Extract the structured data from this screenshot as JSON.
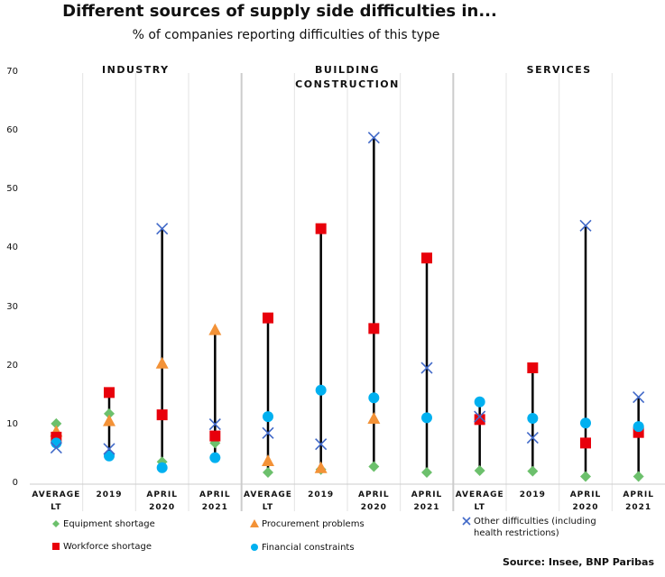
{
  "chart_data": {
    "type": "dot",
    "title": "Different sources of supply side difficulties in...",
    "subtitle": "% of companies reporting difficulties of this type",
    "source": "Source: Insee, BNP Paribas",
    "ylim": [
      0,
      70
    ],
    "yticks": [
      0,
      10,
      20,
      30,
      40,
      50,
      60,
      70
    ],
    "series": [
      {
        "name": "Equipment shortage",
        "color": "#6cc06c",
        "marker": "diamond"
      },
      {
        "name": "Procurement problems",
        "color": "#f39237",
        "marker": "triangle"
      },
      {
        "name": "Workforce shortage",
        "color": "#e8000b",
        "marker": "square"
      },
      {
        "name": "Financial constraints",
        "color": "#00b0f0",
        "marker": "circle"
      },
      {
        "name": "Other difficulties (including health restrictions)",
        "color": "#4169c8",
        "marker": "x"
      }
    ],
    "panels": [
      {
        "title": "INDUSTRY",
        "categories": [
          "AVERAGE LT",
          "2019",
          "APRIL 2020",
          "APRIL 2021"
        ],
        "values": [
          [
            10.3,
            12,
            3.8,
            7
          ],
          [
            9,
            10.8,
            20.6,
            26.3
          ],
          [
            8,
            15.6,
            11.8,
            8.2
          ],
          [
            7,
            4.8,
            2.8,
            4.5
          ],
          [
            6.2,
            6,
            43.5,
            10.2
          ]
        ]
      },
      {
        "title": "BUILDING CONSTRUCTION",
        "categories": [
          "AVERAGE LT",
          "2019",
          "APRIL 2020",
          "APRIL 2021"
        ],
        "values": [
          [
            2,
            2.5,
            3,
            2
          ],
          [
            4,
            2.8,
            11.2,
            null
          ],
          [
            28.3,
            43.5,
            26.5,
            38.5
          ],
          [
            11.5,
            16,
            14.7,
            11.3
          ],
          [
            8.7,
            6.8,
            59,
            19.8
          ]
        ]
      },
      {
        "title": "SERVICES",
        "categories": [
          "AVERAGE LT",
          "2019",
          "APRIL 2020",
          "APRIL 2021"
        ],
        "values": [
          [
            2.3,
            2.2,
            1.3,
            1.3
          ],
          [
            null,
            null,
            null,
            null
          ],
          [
            11,
            19.8,
            7,
            8.8
          ],
          [
            14,
            11.2,
            10.4,
            9.8
          ],
          [
            11.5,
            7.9,
            44,
            14.8
          ]
        ]
      }
    ]
  }
}
